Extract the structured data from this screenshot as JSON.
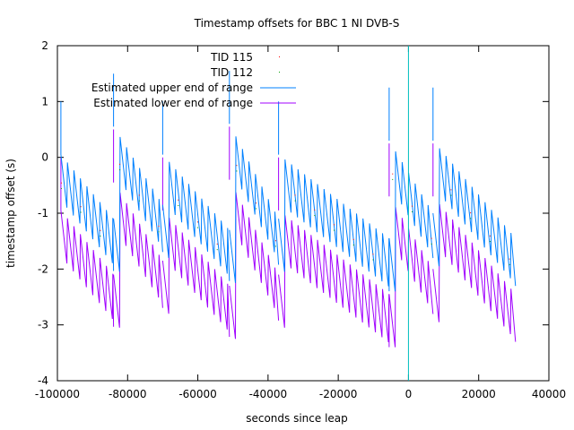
{
  "chart_data": {
    "type": "line",
    "title": "Timestamp offsets for BBC 1 NI DVB-S",
    "xlabel": "seconds since leap",
    "ylabel": "timestamp offset (s)",
    "xlim": [
      -100000,
      40000
    ],
    "ylim": [
      -4,
      2
    ],
    "xticks": [
      -100000,
      -80000,
      -60000,
      -40000,
      -20000,
      0,
      20000,
      40000
    ],
    "yticks": [
      -4,
      -3,
      -2,
      -1,
      0,
      1,
      2
    ],
    "xtick_labels": [
      "-100000",
      "-80000",
      "-60000",
      "-40000",
      "-20000",
      "0",
      "20000",
      "40000"
    ],
    "ytick_labels": [
      "-4",
      "-3",
      "-2",
      "-1",
      "0",
      "1",
      "2"
    ],
    "grid": false,
    "legend_placement": "top-center",
    "leap_marker": {
      "x": 0,
      "color": "#00c0c0"
    },
    "sawtooth": {
      "x_start": -99000,
      "x_end": 30500,
      "period": 1850,
      "swing": 0.95,
      "resets": [
        -84000,
        -70000,
        -51000,
        -37000,
        -5500,
        7000
      ],
      "segments": [
        {
          "x_start": -99000,
          "x_end": -84000,
          "upper_start": 0.05,
          "upper_end": -1.1
        },
        {
          "x_start": -84000,
          "x_end": -70000,
          "upper_start": 0.55,
          "upper_end": -0.85
        },
        {
          "x_start": -70000,
          "x_end": -51000,
          "upper_start": 0.05,
          "upper_end": -1.3
        },
        {
          "x_start": -51000,
          "x_end": -37000,
          "upper_start": 0.6,
          "upper_end": -1.1
        },
        {
          "x_start": -37000,
          "x_end": -5500,
          "upper_start": 0.05,
          "upper_end": -1.45
        },
        {
          "x_start": -5500,
          "x_end": 7000,
          "upper_start": 0.3,
          "upper_end": -1.0
        },
        {
          "x_start": 7000,
          "x_end": 30500,
          "upper_start": 0.3,
          "upper_end": -1.45
        }
      ],
      "lower_gap": 1.0
    },
    "series": [
      {
        "name": "TID 115",
        "color": "#ff0000",
        "style": "points"
      },
      {
        "name": "TID 112",
        "color": "#00a000",
        "style": "points"
      },
      {
        "name": "Estimated upper end of range",
        "color": "#0080ff",
        "style": "line"
      },
      {
        "name": "Estimated lower end of range",
        "color": "#a000ff",
        "style": "line"
      }
    ]
  }
}
